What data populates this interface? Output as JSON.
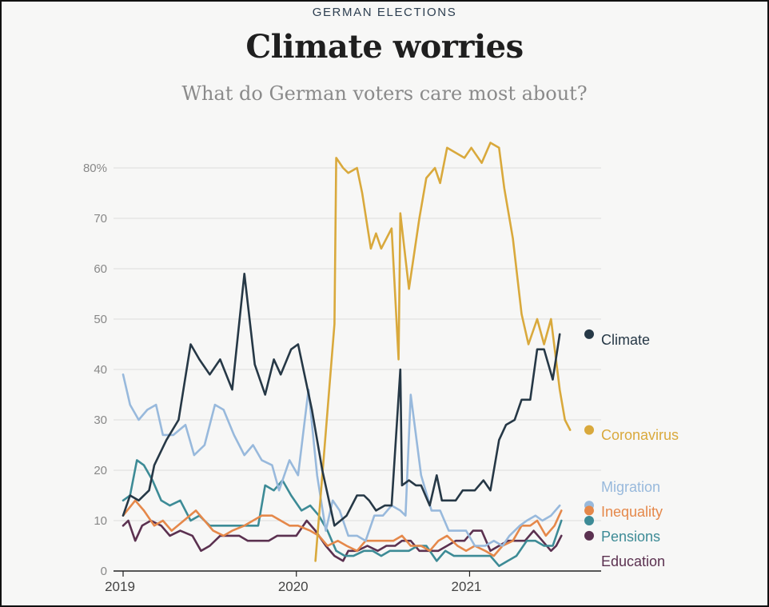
{
  "header": {
    "kicker": "GERMAN ELECTIONS",
    "title": "Climate worries",
    "subtitle": "What do German voters care most about?"
  },
  "chart_data": {
    "type": "line",
    "title": "Climate worries",
    "subtitle": "What do German voters care most about?",
    "xlabel": "",
    "ylabel": "",
    "ylim": [
      0,
      85
    ],
    "y_ticks": [
      {
        "value": 0,
        "label": "0"
      },
      {
        "value": 10,
        "label": "10"
      },
      {
        "value": 20,
        "label": "20"
      },
      {
        "value": 30,
        "label": "30"
      },
      {
        "value": 40,
        "label": "40"
      },
      {
        "value": 50,
        "label": "50"
      },
      {
        "value": 60,
        "label": "60"
      },
      {
        "value": 70,
        "label": "70"
      },
      {
        "value": 80,
        "label": "80%"
      }
    ],
    "x_range": [
      2019.0,
      2021.75
    ],
    "x_ticks": [
      {
        "value": 2019.0,
        "label": "2019"
      },
      {
        "value": 2020.0,
        "label": "2020"
      },
      {
        "value": 2021.0,
        "label": "2021"
      }
    ],
    "grid": true,
    "series": [
      {
        "name": "Climate",
        "color": "#263846",
        "end_value": 47,
        "points": [
          [
            2019.0,
            11
          ],
          [
            2019.04,
            15
          ],
          [
            2019.09,
            14
          ],
          [
            2019.15,
            16
          ],
          [
            2019.18,
            21
          ],
          [
            2019.25,
            26
          ],
          [
            2019.32,
            30
          ],
          [
            2019.39,
            45
          ],
          [
            2019.44,
            42
          ],
          [
            2019.5,
            39
          ],
          [
            2019.56,
            42
          ],
          [
            2019.63,
            36
          ],
          [
            2019.7,
            59
          ],
          [
            2019.76,
            41
          ],
          [
            2019.82,
            35
          ],
          [
            2019.87,
            42
          ],
          [
            2019.91,
            39
          ],
          [
            2019.97,
            44
          ],
          [
            2020.01,
            45
          ],
          [
            2020.09,
            32
          ],
          [
            2020.15,
            20
          ],
          [
            2020.22,
            9
          ],
          [
            2020.29,
            11
          ],
          [
            2020.35,
            15
          ],
          [
            2020.39,
            15
          ],
          [
            2020.42,
            14
          ],
          [
            2020.46,
            12
          ],
          [
            2020.51,
            13
          ],
          [
            2020.55,
            13
          ],
          [
            2020.6,
            40
          ],
          [
            2020.61,
            17
          ],
          [
            2020.65,
            18
          ],
          [
            2020.69,
            17
          ],
          [
            2020.72,
            17
          ],
          [
            2020.77,
            13
          ],
          [
            2020.81,
            19
          ],
          [
            2020.84,
            14
          ],
          [
            2020.92,
            14
          ],
          [
            2020.96,
            16
          ],
          [
            2021.03,
            16
          ],
          [
            2021.08,
            18
          ],
          [
            2021.12,
            16
          ],
          [
            2021.17,
            26
          ],
          [
            2021.21,
            29
          ],
          [
            2021.26,
            30
          ],
          [
            2021.3,
            34
          ],
          [
            2021.35,
            34
          ],
          [
            2021.39,
            44
          ],
          [
            2021.43,
            44
          ],
          [
            2021.48,
            38
          ],
          [
            2021.52,
            47
          ]
        ]
      },
      {
        "name": "Coronavirus",
        "color": "#d9a93c",
        "end_value": 28,
        "points": [
          [
            2020.11,
            2
          ],
          [
            2020.22,
            49
          ],
          [
            2020.23,
            82
          ],
          [
            2020.27,
            80
          ],
          [
            2020.3,
            79
          ],
          [
            2020.35,
            80
          ],
          [
            2020.38,
            75
          ],
          [
            2020.43,
            64
          ],
          [
            2020.46,
            67
          ],
          [
            2020.49,
            64
          ],
          [
            2020.55,
            68
          ],
          [
            2020.59,
            42
          ],
          [
            2020.6,
            71
          ],
          [
            2020.65,
            56
          ],
          [
            2020.71,
            70
          ],
          [
            2020.75,
            78
          ],
          [
            2020.8,
            80
          ],
          [
            2020.83,
            77
          ],
          [
            2020.87,
            84
          ],
          [
            2020.97,
            82
          ],
          [
            2021.01,
            84
          ],
          [
            2021.07,
            81
          ],
          [
            2021.12,
            85
          ],
          [
            2021.17,
            84
          ],
          [
            2021.2,
            76
          ],
          [
            2021.25,
            66
          ],
          [
            2021.3,
            51
          ],
          [
            2021.34,
            45
          ],
          [
            2021.39,
            50
          ],
          [
            2021.43,
            45
          ],
          [
            2021.47,
            50
          ],
          [
            2021.52,
            36
          ],
          [
            2021.55,
            30
          ],
          [
            2021.58,
            28
          ]
        ]
      },
      {
        "name": "Migration",
        "color": "#98b9dc",
        "end_value": 13,
        "points": [
          [
            2019.0,
            39
          ],
          [
            2019.04,
            33
          ],
          [
            2019.09,
            30
          ],
          [
            2019.14,
            32
          ],
          [
            2019.19,
            33
          ],
          [
            2019.23,
            27
          ],
          [
            2019.29,
            27
          ],
          [
            2019.36,
            29
          ],
          [
            2019.41,
            23
          ],
          [
            2019.47,
            25
          ],
          [
            2019.53,
            33
          ],
          [
            2019.58,
            32
          ],
          [
            2019.64,
            27
          ],
          [
            2019.7,
            23
          ],
          [
            2019.75,
            25
          ],
          [
            2019.8,
            22
          ],
          [
            2019.86,
            21
          ],
          [
            2019.9,
            16
          ],
          [
            2019.96,
            22
          ],
          [
            2020.01,
            19
          ],
          [
            2020.07,
            36
          ],
          [
            2020.12,
            19
          ],
          [
            2020.17,
            8
          ],
          [
            2020.21,
            14
          ],
          [
            2020.25,
            12
          ],
          [
            2020.3,
            7
          ],
          [
            2020.35,
            7
          ],
          [
            2020.4,
            6
          ],
          [
            2020.45,
            11
          ],
          [
            2020.5,
            11
          ],
          [
            2020.55,
            13
          ],
          [
            2020.6,
            12
          ],
          [
            2020.63,
            11
          ],
          [
            2020.66,
            35
          ],
          [
            2020.72,
            19
          ],
          [
            2020.78,
            12
          ],
          [
            2020.83,
            12
          ],
          [
            2020.88,
            8
          ],
          [
            2020.93,
            8
          ],
          [
            2020.98,
            8
          ],
          [
            2021.03,
            5
          ],
          [
            2021.09,
            5
          ],
          [
            2021.14,
            6
          ],
          [
            2021.19,
            5
          ],
          [
            2021.23,
            7
          ],
          [
            2021.29,
            9
          ],
          [
            2021.33,
            10
          ],
          [
            2021.38,
            11
          ],
          [
            2021.42,
            10
          ],
          [
            2021.47,
            11
          ],
          [
            2021.52,
            13
          ]
        ]
      },
      {
        "name": "Inequality",
        "color": "#e5884a",
        "end_value": 12,
        "points": [
          [
            2019.0,
            11
          ],
          [
            2019.07,
            14
          ],
          [
            2019.12,
            12
          ],
          [
            2019.18,
            9
          ],
          [
            2019.23,
            10
          ],
          [
            2019.28,
            8
          ],
          [
            2019.35,
            10
          ],
          [
            2019.42,
            12
          ],
          [
            2019.47,
            10
          ],
          [
            2019.52,
            8
          ],
          [
            2019.58,
            7
          ],
          [
            2019.63,
            8
          ],
          [
            2019.7,
            9
          ],
          [
            2019.75,
            10
          ],
          [
            2019.8,
            11
          ],
          [
            2019.86,
            11
          ],
          [
            2019.91,
            10
          ],
          [
            2019.96,
            9
          ],
          [
            2020.01,
            9
          ],
          [
            2020.08,
            8
          ],
          [
            2020.13,
            7
          ],
          [
            2020.18,
            5
          ],
          [
            2020.24,
            6
          ],
          [
            2020.29,
            5
          ],
          [
            2020.35,
            4
          ],
          [
            2020.4,
            6
          ],
          [
            2020.46,
            6
          ],
          [
            2020.51,
            6
          ],
          [
            2020.56,
            6
          ],
          [
            2020.61,
            7
          ],
          [
            2020.66,
            5
          ],
          [
            2020.72,
            5
          ],
          [
            2020.77,
            4
          ],
          [
            2020.82,
            6
          ],
          [
            2020.87,
            7
          ],
          [
            2020.93,
            5
          ],
          [
            2020.98,
            4
          ],
          [
            2021.03,
            5
          ],
          [
            2021.09,
            4
          ],
          [
            2021.14,
            3
          ],
          [
            2021.19,
            5
          ],
          [
            2021.25,
            6
          ],
          [
            2021.3,
            9
          ],
          [
            2021.35,
            9
          ],
          [
            2021.39,
            10
          ],
          [
            2021.44,
            7
          ],
          [
            2021.49,
            9
          ],
          [
            2021.53,
            12
          ]
        ]
      },
      {
        "name": "Pensions",
        "color": "#3d8b96",
        "end_value": 10,
        "points": [
          [
            2019.0,
            14
          ],
          [
            2019.04,
            15
          ],
          [
            2019.08,
            22
          ],
          [
            2019.12,
            21
          ],
          [
            2019.17,
            18
          ],
          [
            2019.22,
            14
          ],
          [
            2019.27,
            13
          ],
          [
            2019.33,
            14
          ],
          [
            2019.39,
            10
          ],
          [
            2019.44,
            11
          ],
          [
            2019.5,
            9
          ],
          [
            2019.56,
            9
          ],
          [
            2019.61,
            9
          ],
          [
            2019.67,
            9
          ],
          [
            2019.72,
            9
          ],
          [
            2019.78,
            9
          ],
          [
            2019.82,
            17
          ],
          [
            2019.87,
            16
          ],
          [
            2019.92,
            18
          ],
          [
            2019.97,
            15
          ],
          [
            2020.03,
            12
          ],
          [
            2020.08,
            13
          ],
          [
            2020.13,
            11
          ],
          [
            2020.18,
            8
          ],
          [
            2020.23,
            4
          ],
          [
            2020.28,
            3
          ],
          [
            2020.33,
            3
          ],
          [
            2020.39,
            4
          ],
          [
            2020.44,
            4
          ],
          [
            2020.49,
            3
          ],
          [
            2020.54,
            4
          ],
          [
            2020.6,
            4
          ],
          [
            2020.65,
            4
          ],
          [
            2020.7,
            5
          ],
          [
            2020.75,
            5
          ],
          [
            2020.81,
            2
          ],
          [
            2020.86,
            4
          ],
          [
            2020.91,
            3
          ],
          [
            2020.96,
            3
          ],
          [
            2021.01,
            3
          ],
          [
            2021.07,
            3
          ],
          [
            2021.12,
            3
          ],
          [
            2021.17,
            1
          ],
          [
            2021.22,
            2
          ],
          [
            2021.27,
            3
          ],
          [
            2021.33,
            6
          ],
          [
            2021.38,
            6
          ],
          [
            2021.43,
            5
          ],
          [
            2021.48,
            5
          ],
          [
            2021.53,
            10
          ]
        ]
      },
      {
        "name": "Education",
        "color": "#5b3150",
        "end_value": 7,
        "points": [
          [
            2019.0,
            9
          ],
          [
            2019.03,
            10
          ],
          [
            2019.07,
            6
          ],
          [
            2019.11,
            9
          ],
          [
            2019.16,
            10
          ],
          [
            2019.22,
            9
          ],
          [
            2019.27,
            7
          ],
          [
            2019.33,
            8
          ],
          [
            2019.4,
            7
          ],
          [
            2019.45,
            4
          ],
          [
            2019.5,
            5
          ],
          [
            2019.56,
            7
          ],
          [
            2019.61,
            7
          ],
          [
            2019.67,
            7
          ],
          [
            2019.72,
            6
          ],
          [
            2019.78,
            6
          ],
          [
            2019.84,
            6
          ],
          [
            2019.89,
            7
          ],
          [
            2019.95,
            7
          ],
          [
            2020.0,
            7
          ],
          [
            2020.06,
            10
          ],
          [
            2020.11,
            8
          ],
          [
            2020.17,
            5
          ],
          [
            2020.22,
            3
          ],
          [
            2020.27,
            2
          ],
          [
            2020.3,
            4
          ],
          [
            2020.35,
            4
          ],
          [
            2020.41,
            5
          ],
          [
            2020.47,
            4
          ],
          [
            2020.52,
            5
          ],
          [
            2020.57,
            5
          ],
          [
            2020.61,
            6
          ],
          [
            2020.66,
            6
          ],
          [
            2020.71,
            4
          ],
          [
            2020.76,
            4
          ],
          [
            2020.82,
            4
          ],
          [
            2020.87,
            5
          ],
          [
            2020.92,
            6
          ],
          [
            2020.97,
            6
          ],
          [
            2021.02,
            8
          ],
          [
            2021.07,
            8
          ],
          [
            2021.12,
            4
          ],
          [
            2021.17,
            5
          ],
          [
            2021.22,
            6
          ],
          [
            2021.27,
            6
          ],
          [
            2021.32,
            6
          ],
          [
            2021.37,
            8
          ],
          [
            2021.42,
            6
          ],
          [
            2021.47,
            4
          ],
          [
            2021.5,
            5
          ],
          [
            2021.53,
            7
          ]
        ]
      }
    ]
  }
}
